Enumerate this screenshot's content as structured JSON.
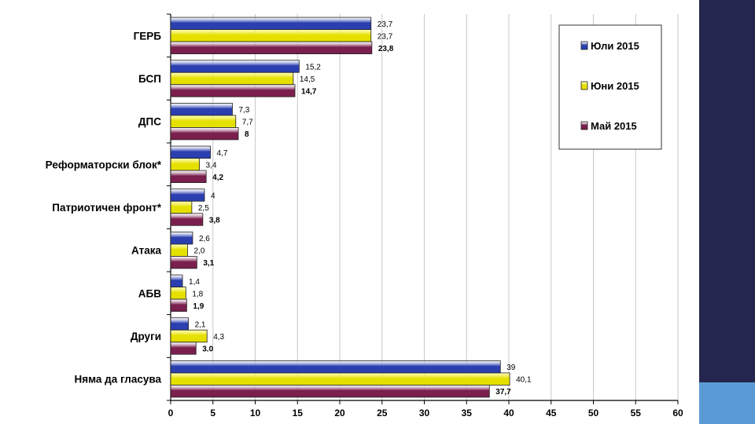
{
  "colors": {
    "background": "#ffffff",
    "side_band": "#25264f",
    "side_accent": "#5b9bd5",
    "grid": "#c8c8c8",
    "series": [
      "#2b3fb0",
      "#e5e000",
      "#7a1f4e"
    ]
  },
  "chart_data": {
    "type": "bar",
    "orientation": "horizontal",
    "categories": [
      "ГЕРБ",
      "БСП",
      "ДПС",
      "Реформаторски блок*",
      "Патриотичен фронт*",
      "Атака",
      "АБВ",
      "Други",
      "Няма да гласува"
    ],
    "series": [
      {
        "name": "Юли 2015",
        "values": [
          23.7,
          15.2,
          7.3,
          4.7,
          4,
          2.6,
          1.4,
          2.1,
          39
        ],
        "labels": [
          "23,7",
          "15,2",
          "7,3",
          "4,7",
          "4",
          "2,6",
          "1,4",
          "2,1",
          "39"
        ]
      },
      {
        "name": "Юни 2015",
        "values": [
          23.7,
          14.5,
          7.7,
          3.4,
          2.5,
          2.0,
          1.8,
          4.3,
          40.1
        ],
        "labels": [
          "23,7",
          "14,5",
          "7,7",
          "3,4",
          "2,5",
          "2,0",
          "1,8",
          "4,3",
          "40,1"
        ]
      },
      {
        "name": "Май 2015",
        "values": [
          23.8,
          14.7,
          8,
          4.2,
          3.8,
          3.1,
          1.9,
          3.0,
          37.7
        ],
        "labels": [
          "23,8",
          "14,7",
          "8",
          "4,2",
          "3,8",
          "3,1",
          "1,9",
          "3.0",
          "37,7"
        ]
      }
    ],
    "xlim": [
      0,
      60
    ],
    "xticks": [
      0,
      5,
      10,
      15,
      20,
      25,
      30,
      35,
      40,
      45,
      50,
      55,
      60
    ],
    "grid": true,
    "legend_position": "top-right"
  }
}
